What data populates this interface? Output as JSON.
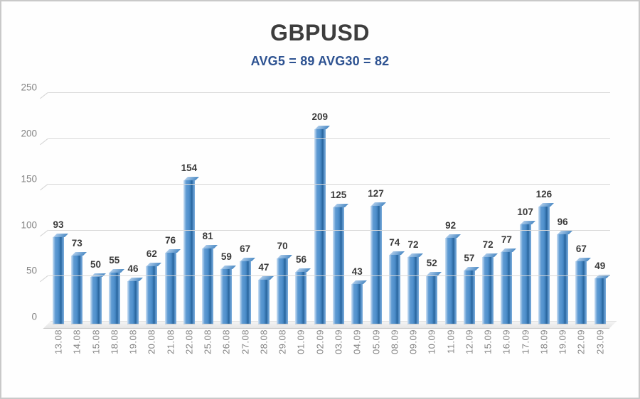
{
  "header": {
    "title": "GBPUSD",
    "subtitle": "AVG5 = 89 AVG30 = 82"
  },
  "chart_data": {
    "type": "bar",
    "title": "GBPUSD",
    "subtitle": "AVG5 = 89 AVG30 = 82",
    "categories": [
      "13.08",
      "14.08",
      "15.08",
      "18.08",
      "19.08",
      "20.08",
      "21.08",
      "22.08",
      "25.08",
      "26.08",
      "27.08",
      "28.08",
      "29.08",
      "01.09",
      "02.09",
      "03.09",
      "04.09",
      "05.09",
      "08.09",
      "09.09",
      "10.09",
      "11.09",
      "12.09",
      "15.09",
      "16.09",
      "17.09",
      "18.09",
      "19.09",
      "22.09",
      "23.09"
    ],
    "values": [
      93,
      73,
      50,
      55,
      46,
      62,
      76,
      154,
      81,
      59,
      67,
      47,
      70,
      56,
      209,
      125,
      43,
      127,
      74,
      72,
      52,
      92,
      57,
      72,
      77,
      107,
      126,
      96,
      67,
      49
    ],
    "data_labels_shown": true,
    "xlabel": "",
    "ylabel": "",
    "ylim": [
      0,
      250
    ],
    "yticks": [
      0,
      50,
      100,
      150,
      200,
      250
    ],
    "grid": true,
    "legend_position": "none",
    "style": "excel-3d-column",
    "avg5": 89,
    "avg30": 82,
    "colors": {
      "bar_main": "#4f90cc",
      "bar_highlight": "#cde1f4",
      "bar_shadow": "#2b679f",
      "title_text": "#3d3d3d",
      "subtitle_text": "#2d5291",
      "axis_text": "#848484",
      "value_text": "#3a3a3a",
      "gridline": "#d8d8d8",
      "background": "#fefefe"
    }
  }
}
